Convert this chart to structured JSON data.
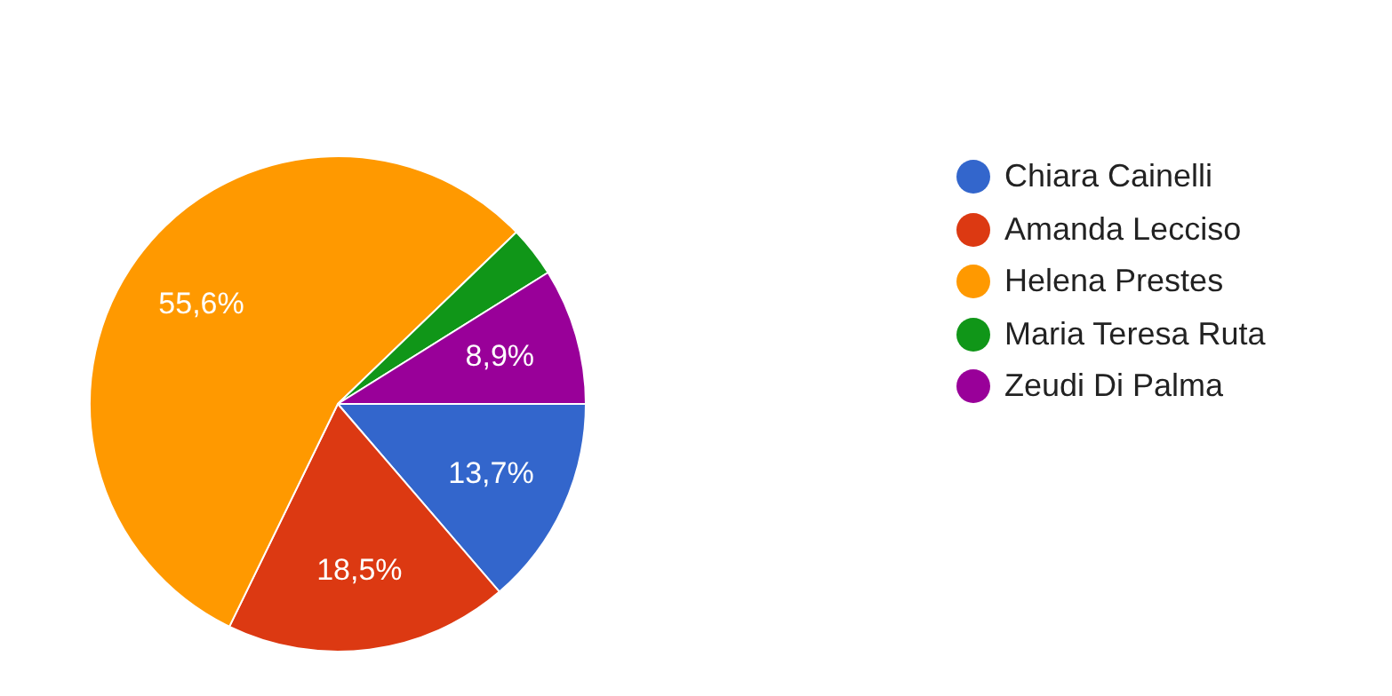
{
  "chart_data": {
    "type": "pie",
    "categories": [
      "Chiara Cainelli",
      "Amanda Lecciso",
      "Helena Prestes",
      "Maria Teresa Ruta",
      "Zeudi Di Palma"
    ],
    "values": [
      13.7,
      18.5,
      55.6,
      3.3,
      8.9
    ],
    "colors": [
      "#3366cc",
      "#dc3912",
      "#ff9900",
      "#109618",
      "#990099"
    ],
    "value_labels": [
      "13,7%",
      "18,5%",
      "55,6%",
      null,
      "8,9%"
    ],
    "legend": "right"
  }
}
